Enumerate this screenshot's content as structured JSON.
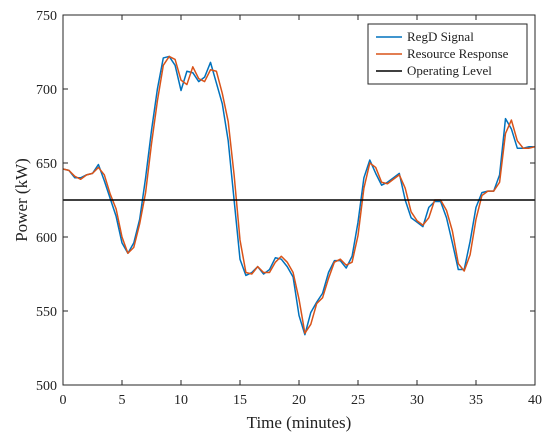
{
  "chart_data": {
    "type": "line",
    "title": "",
    "xlabel": "Time (minutes)",
    "ylabel": "Power (kW)",
    "xlim": [
      0,
      40
    ],
    "ylim": [
      500,
      750
    ],
    "xticks": [
      "0",
      "5",
      "10",
      "15",
      "20",
      "25",
      "30",
      "35",
      "40"
    ],
    "yticks": [
      "500",
      "550",
      "600",
      "650",
      "700",
      "750"
    ],
    "grid": false,
    "legend_position": "top-right",
    "series": [
      {
        "name": "RegD Signal",
        "color": "#0072BD",
        "x": [
          0,
          0.5,
          1,
          1.5,
          2,
          2.5,
          3,
          3.5,
          4,
          4.5,
          5,
          5.5,
          6,
          6.5,
          7,
          7.5,
          8,
          8.5,
          9,
          9.5,
          10,
          10.5,
          11,
          11.5,
          12,
          12.5,
          13,
          13.5,
          14,
          14.5,
          15,
          15.5,
          16,
          16.5,
          17,
          17.5,
          18,
          18.5,
          19,
          19.5,
          20,
          20.5,
          21,
          21.5,
          22,
          22.5,
          23,
          23.5,
          24,
          24.5,
          25,
          25.5,
          26,
          26.5,
          27,
          27.5,
          28,
          28.5,
          29,
          29.5,
          30,
          30.5,
          31,
          31.5,
          32,
          32.5,
          33,
          33.5,
          34,
          34.5,
          35,
          35.5,
          36,
          36.5,
          37,
          37.5,
          38,
          38.5,
          39,
          39.5,
          40
        ],
        "values": [
          646,
          645,
          640,
          640,
          642,
          643,
          649,
          638,
          626,
          614,
          596,
          589,
          596,
          612,
          640,
          672,
          700,
          721,
          722,
          716,
          699,
          712,
          711,
          705,
          708,
          718,
          704,
          690,
          665,
          625,
          585,
          574,
          576,
          580,
          575,
          578,
          586,
          585,
          580,
          573,
          547,
          534,
          549,
          556,
          562,
          576,
          584,
          584,
          579,
          587,
          610,
          640,
          652,
          643,
          635,
          637,
          640,
          643,
          625,
          613,
          610,
          607,
          620,
          624,
          624,
          613,
          596,
          578,
          578,
          597,
          620,
          630,
          631,
          631,
          642,
          680,
          673,
          660,
          660,
          661,
          661
        ]
      },
      {
        "name": "Resource Response",
        "color": "#D95319",
        "x": [
          0,
          0.5,
          1,
          1.5,
          2,
          2.5,
          3,
          3.5,
          4,
          4.5,
          5,
          5.5,
          6,
          6.5,
          7,
          7.5,
          8,
          8.5,
          9,
          9.5,
          10,
          10.5,
          11,
          11.5,
          12,
          12.5,
          13,
          13.5,
          14,
          14.5,
          15,
          15.5,
          16,
          16.5,
          17,
          17.5,
          18,
          18.5,
          19,
          19.5,
          20,
          20.5,
          21,
          21.5,
          22,
          22.5,
          23,
          23.5,
          24,
          24.5,
          25,
          25.5,
          26,
          26.5,
          27,
          27.5,
          28,
          28.5,
          29,
          29.5,
          30,
          30.5,
          31,
          31.5,
          32,
          32.5,
          33,
          33.5,
          34,
          34.5,
          35,
          35.5,
          36,
          36.5,
          37,
          37.5,
          38,
          38.5,
          39,
          39.5,
          40
        ],
        "values": [
          646,
          645,
          641,
          639,
          642,
          643,
          647,
          642,
          629,
          619,
          600,
          589,
          593,
          609,
          630,
          663,
          692,
          716,
          722,
          720,
          706,
          703,
          715,
          707,
          705,
          713,
          712,
          697,
          678,
          642,
          598,
          576,
          575,
          580,
          576,
          576,
          583,
          587,
          583,
          576,
          558,
          535,
          541,
          555,
          559,
          572,
          583,
          585,
          581,
          583,
          601,
          633,
          650,
          647,
          637,
          636,
          639,
          642,
          633,
          617,
          611,
          608,
          613,
          625,
          625,
          618,
          604,
          582,
          577,
          588,
          612,
          628,
          631,
          631,
          637,
          670,
          679,
          665,
          660,
          660,
          661
        ]
      },
      {
        "name": "Operating Level",
        "color": "#000000",
        "x": [
          0,
          40
        ],
        "values": [
          625,
          625
        ]
      }
    ]
  }
}
